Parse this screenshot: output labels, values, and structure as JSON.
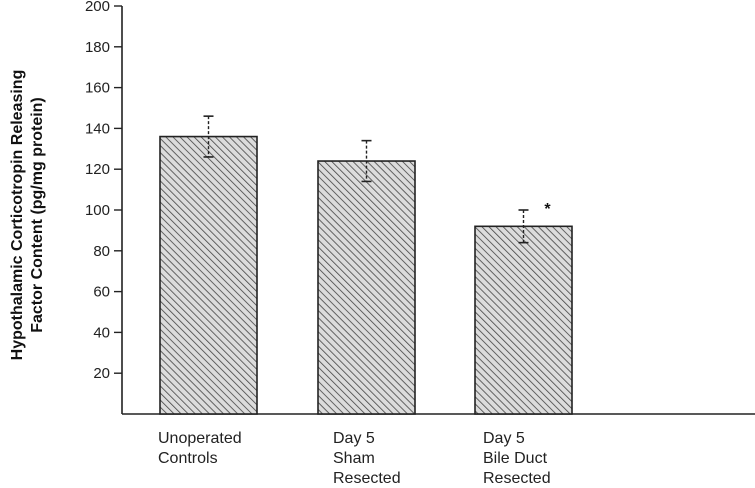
{
  "chart_data": {
    "type": "bar",
    "title": "",
    "xlabel": "",
    "ylabel_lines": [
      "Hypothalamic Corticotropin Releasing",
      "Factor Content (pg/mg protein)"
    ],
    "ylim": [
      0,
      200
    ],
    "yticks": [
      20,
      40,
      60,
      80,
      100,
      120,
      140,
      160,
      180,
      200
    ],
    "categories": [
      [
        "Unoperated",
        "Controls"
      ],
      [
        "Day 5",
        "Sham",
        "Resected"
      ],
      [
        "Day 5",
        "Bile Duct",
        "Resected"
      ]
    ],
    "values": [
      136,
      124,
      92
    ],
    "error": [
      10,
      10,
      8
    ],
    "annotations": [
      {
        "category_index": 2,
        "text": "*"
      }
    ],
    "grid": false,
    "fill": "hatched",
    "colors": {
      "bar_fill": "#d9d9d9",
      "hatch": "#444444",
      "axis": "#222222"
    }
  }
}
